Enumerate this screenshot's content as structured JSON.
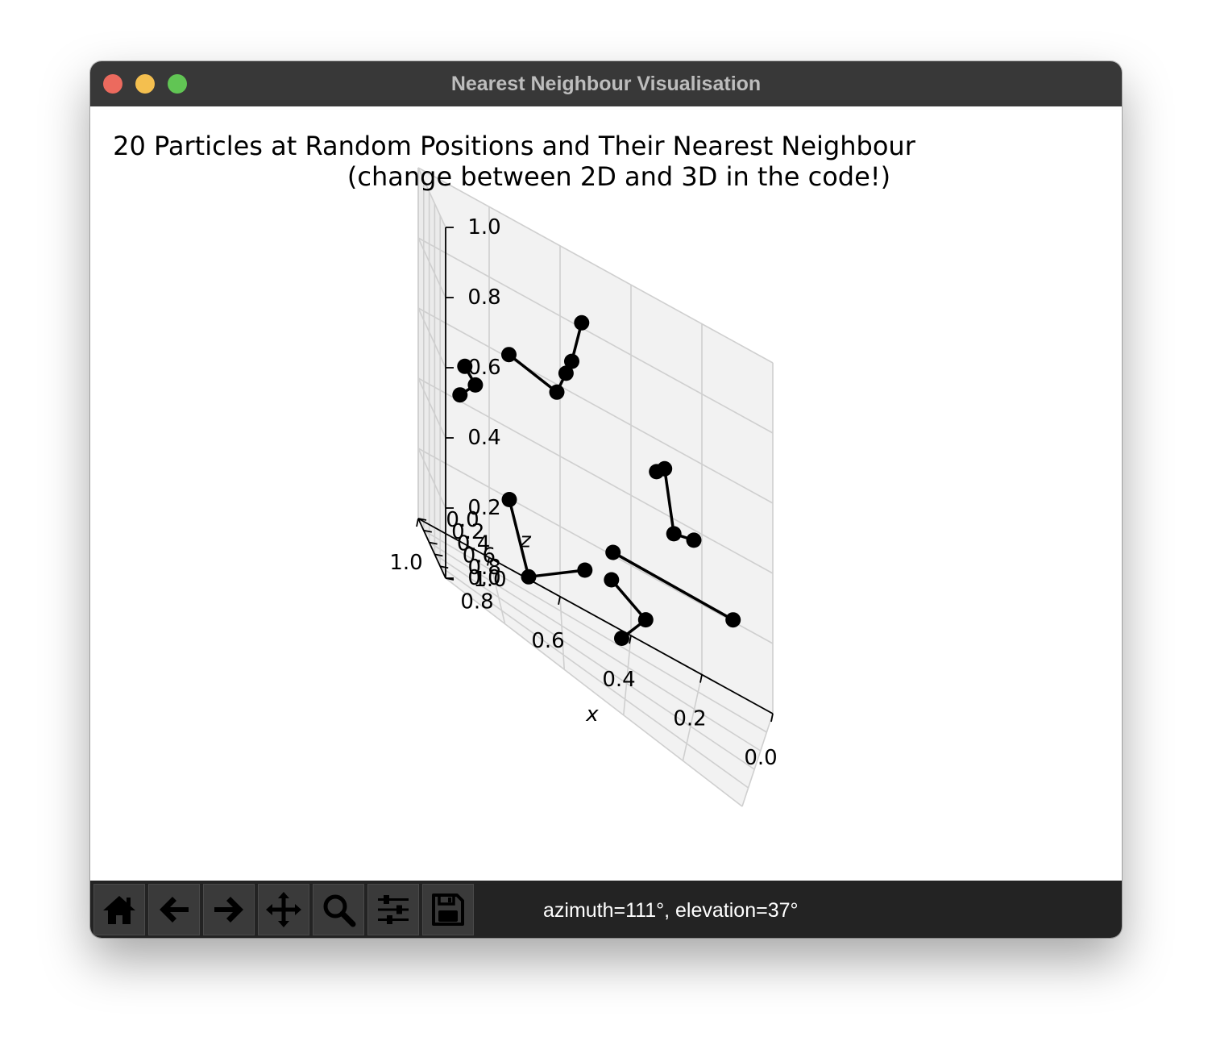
{
  "window": {
    "title": "Nearest Neighbour Visualisation"
  },
  "figure": {
    "title_line1": "20 Particles at Random Positions and Their Nearest Neighbour",
    "title_line2": "(change between 2D and 3D in the code!)"
  },
  "chart_data": {
    "type": "scatter",
    "projection": "3d",
    "view": {
      "azimuth": 111,
      "elevation": 37
    },
    "axes": {
      "x": {
        "label": "x",
        "lim": [
          0,
          1
        ],
        "ticks": [
          "1.0",
          "0.8",
          "0.6",
          "0.4",
          "0.2",
          "0.0"
        ]
      },
      "y": {
        "label": "",
        "lim": [
          0,
          1
        ],
        "ticks": [
          "1.0",
          "0.8",
          "0.6",
          "0.4",
          "0.2",
          "0.0"
        ]
      },
      "z": {
        "label": "z",
        "lim": [
          0,
          1
        ],
        "ticks": [
          "0.0",
          "0.2",
          "0.4",
          "0.6",
          "0.8",
          "1.0"
        ]
      }
    },
    "grid": true,
    "marker_color": "#000000",
    "line_color": "#000000",
    "particles": [
      {
        "id": 0,
        "x": 0.58,
        "y": 0.65,
        "z": 0.06
      },
      {
        "id": 1,
        "x": 0.65,
        "y": 0.71,
        "z": 0.14
      },
      {
        "id": 2,
        "x": 0.55,
        "y": 0.6,
        "z": 0.22
      },
      {
        "id": 3,
        "x": 0.47,
        "y": 0.74,
        "z": 0.17
      },
      {
        "id": 4,
        "x": 0.3,
        "y": 0.6,
        "z": 0.08
      },
      {
        "id": 5,
        "x": 0.25,
        "y": 0.81,
        "z": 0.23
      },
      {
        "id": 6,
        "x": 0.94,
        "y": 0.32,
        "z": 0.41
      },
      {
        "id": 7,
        "x": 0.56,
        "y": 0.26,
        "z": 0.38
      },
      {
        "id": 8,
        "x": 0.82,
        "y": 0.25,
        "z": 0.58
      },
      {
        "id": 9,
        "x": 0.76,
        "y": 0.17,
        "z": 0.58
      },
      {
        "id": 10,
        "x": 0.72,
        "y": 0.38,
        "z": 0.69
      },
      {
        "id": 11,
        "x": 0.7,
        "y": 0.25,
        "z": 0.7
      },
      {
        "id": 12,
        "x": 0.1,
        "y": 0.71,
        "z": 0.46
      },
      {
        "id": 13,
        "x": 0.14,
        "y": 0.61,
        "z": 0.53
      },
      {
        "id": 14,
        "x": 0.11,
        "y": 0.64,
        "z": 0.56
      },
      {
        "id": 15,
        "x": 0.23,
        "y": 0.35,
        "z": 0.72
      },
      {
        "id": 16,
        "x": 0.38,
        "y": 0.28,
        "z": 0.72
      },
      {
        "id": 17,
        "x": 0.41,
        "y": 0.34,
        "z": 0.78
      },
      {
        "id": 18,
        "x": 0.43,
        "y": 0.56,
        "z": 0.78
      },
      {
        "id": 19,
        "x": 0.46,
        "y": 0.55,
        "z": 0.91
      }
    ],
    "neighbour_links": [
      [
        0,
        1
      ],
      [
        1,
        2
      ],
      [
        3,
        4
      ],
      [
        4,
        5
      ],
      [
        6,
        7
      ],
      [
        8,
        9
      ],
      [
        9,
        10
      ],
      [
        10,
        11
      ],
      [
        12,
        13
      ],
      [
        13,
        14
      ],
      [
        15,
        16
      ],
      [
        16,
        17
      ],
      [
        17,
        18
      ],
      [
        18,
        19
      ]
    ]
  },
  "toolbar": {
    "buttons": [
      {
        "name": "home-button",
        "icon": "home-icon",
        "tooltip": "Reset original view"
      },
      {
        "name": "back-button",
        "icon": "arrow-left-icon",
        "tooltip": "Back to previous view"
      },
      {
        "name": "forward-button",
        "icon": "arrow-right-icon",
        "tooltip": "Forward to next view"
      },
      {
        "name": "pan-button",
        "icon": "move-icon",
        "tooltip": "Pan axes"
      },
      {
        "name": "zoom-button",
        "icon": "magnifier-icon",
        "tooltip": "Zoom to rectangle"
      },
      {
        "name": "configure-subplots-button",
        "icon": "sliders-icon",
        "tooltip": "Configure subplots"
      },
      {
        "name": "save-button",
        "icon": "floppy-disk-icon",
        "tooltip": "Save the figure"
      }
    ],
    "status": "azimuth=111°, elevation=37°"
  }
}
